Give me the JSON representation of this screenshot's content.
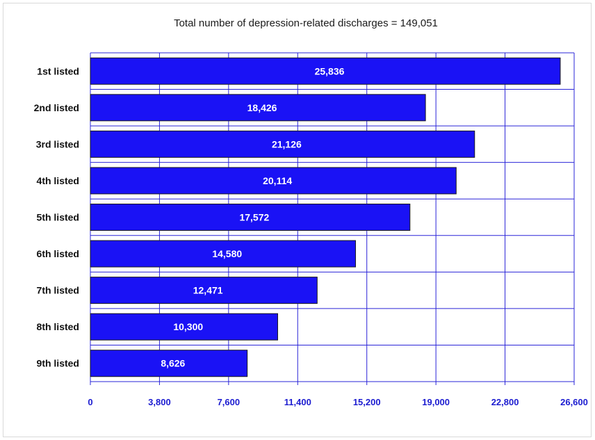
{
  "chart_data": {
    "type": "bar",
    "orientation": "horizontal",
    "title": "Total number of depression-related discharges  = 149,051",
    "categories": [
      "1st listed",
      "2nd listed",
      "3rd listed",
      "4th listed",
      "5th listed",
      "6th listed",
      "7th listed",
      "8th listed",
      "9th listed"
    ],
    "values": [
      25836,
      18426,
      21126,
      20114,
      17572,
      14580,
      12471,
      10300,
      8626
    ],
    "value_labels": [
      "25,836",
      "18,426",
      "21,126",
      "20,114",
      "17,572",
      "14,580",
      "12,471",
      "10,300",
      "8,626"
    ],
    "xlim": [
      0,
      26600
    ],
    "xticks": [
      0,
      3800,
      7600,
      11400,
      15200,
      19000,
      22800,
      26600
    ],
    "xtick_labels": [
      "0",
      "3,800",
      "7,600",
      "11,400",
      "15,200",
      "19,000",
      "22,800",
      "26,600"
    ],
    "xlabel": "",
    "ylabel": "",
    "grid": true,
    "legend": "none",
    "colors": {
      "bar": "#1a12f5",
      "bar_edge": "#1a1a1a",
      "grid": "#2a24d8",
      "tick_text": "#1c1cd0"
    }
  }
}
